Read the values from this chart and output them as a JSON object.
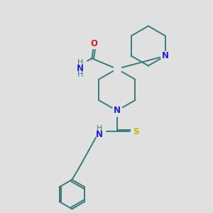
{
  "bg_color": "#e0e0e0",
  "bond_color": "#3a7a7a",
  "N_color": "#2020cc",
  "O_color": "#cc2020",
  "S_color": "#bbbb00",
  "bond_lw": 1.4,
  "font_size": 8.5,
  "fig_size": [
    3.0,
    3.0
  ],
  "dpi": 100,
  "xlim": [
    0,
    10
  ],
  "ylim": [
    0,
    10
  ]
}
